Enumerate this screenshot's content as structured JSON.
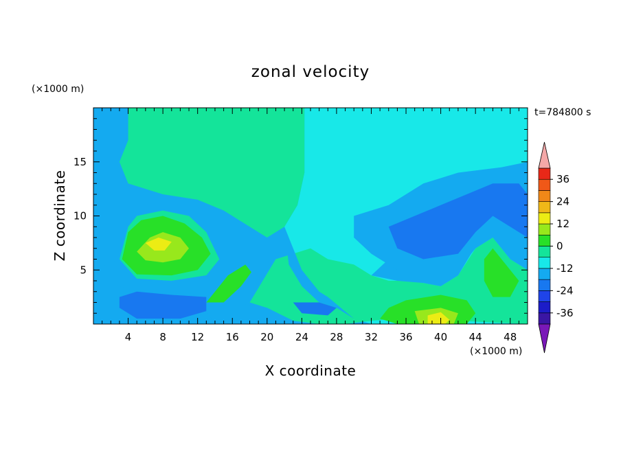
{
  "chart_data": {
    "type": "heatmap",
    "title": "zonal velocity",
    "xlabel": "X coordinate",
    "ylabel": "Z coordinate",
    "x_unit": "(×1000 m)",
    "y_unit": "(×1000 m)",
    "time_label": "t=784800 s",
    "xlim": [
      0,
      50
    ],
    "ylim": [
      0,
      20
    ],
    "x_ticks": [
      4,
      8,
      12,
      16,
      20,
      24,
      28,
      32,
      36,
      40,
      44,
      48
    ],
    "y_ticks": [
      5,
      10,
      15
    ],
    "colorbar": {
      "labels": [
        "36",
        "24",
        "12",
        "0",
        "-12",
        "-24",
        "-36"
      ],
      "label_values": [
        36,
        24,
        12,
        0,
        -12,
        -24,
        -36
      ],
      "levels": [
        -42,
        -36,
        -30,
        -24,
        -18,
        -12,
        -6,
        0,
        6,
        12,
        18,
        24,
        30,
        36,
        42
      ],
      "colors": [
        "#7a18b8",
        "#3a16a4",
        "#1c1cc8",
        "#1f44e8",
        "#1878f0",
        "#14aaf0",
        "#18e8e8",
        "#14e49a",
        "#28e028",
        "#98e81c",
        "#ecec14",
        "#f0b818",
        "#f08818",
        "#f05818",
        "#e82818",
        "#f4a8a8"
      ]
    },
    "field": {
      "background": 5,
      "regions": [
        {
          "level": 6,
          "points": [
            [
              2,
              20
            ],
            [
              50,
              20
            ],
            [
              50,
              0
            ],
            [
              32,
              0
            ],
            [
              30,
              0.5
            ],
            [
              27,
              2.5
            ],
            [
              26,
              3
            ],
            [
              24,
              5
            ],
            [
              22.5,
              6.5
            ],
            [
              22,
              9
            ],
            [
              23.5,
              11
            ],
            [
              24.3,
              14
            ],
            [
              24.3,
              20
            ]
          ]
        },
        {
          "level": 7,
          "points": [
            [
              4,
              20
            ],
            [
              24.3,
              20
            ],
            [
              24.3,
              14
            ],
            [
              23.5,
              11
            ],
            [
              22,
              9
            ],
            [
              20,
              8
            ],
            [
              18,
              9
            ],
            [
              15,
              10.5
            ],
            [
              12,
              11.5
            ],
            [
              8,
              12
            ],
            [
              4,
              13
            ],
            [
              3,
              15
            ],
            [
              4,
              17
            ]
          ]
        },
        {
          "level": 7,
          "points": [
            [
              21,
              6
            ],
            [
              25,
              7
            ],
            [
              27,
              6
            ],
            [
              30,
              5.5
            ],
            [
              32,
              4.5
            ],
            [
              34,
              4
            ],
            [
              36,
              4
            ],
            [
              38,
              3.8
            ],
            [
              40,
              3.5
            ],
            [
              42,
              4.5
            ],
            [
              44,
              7
            ],
            [
              46,
              8
            ],
            [
              48,
              6
            ],
            [
              50,
              5
            ],
            [
              50,
              0
            ],
            [
              42,
              0.3
            ],
            [
              35,
              0.5
            ],
            [
              32,
              0.3
            ],
            [
              29,
              0
            ],
            [
              26,
              0
            ],
            [
              23,
              0.3
            ],
            [
              20,
              1.5
            ],
            [
              18,
              2
            ]
          ]
        },
        {
          "level": 7,
          "points": [
            [
              3,
              6
            ],
            [
              4,
              9
            ],
            [
              5,
              10
            ],
            [
              8,
              10.5
            ],
            [
              11,
              10
            ],
            [
              13,
              8.5
            ],
            [
              14.5,
              6
            ],
            [
              13,
              4.5
            ],
            [
              9,
              4
            ],
            [
              5,
              4.2
            ]
          ]
        },
        {
          "level": 8,
          "points": [
            [
              3.3,
              6
            ],
            [
              4,
              8.5
            ],
            [
              5.5,
              9.6
            ],
            [
              8,
              10
            ],
            [
              10.5,
              9.3
            ],
            [
              12.5,
              8
            ],
            [
              13.5,
              6.5
            ],
            [
              12,
              5
            ],
            [
              9,
              4.5
            ],
            [
              5,
              4.6
            ]
          ]
        },
        {
          "level": 8,
          "points": [
            [
              36,
              2.2
            ],
            [
              40,
              2.7
            ],
            [
              43,
              2.2
            ],
            [
              44,
              1
            ],
            [
              43,
              0
            ],
            [
              35,
              0
            ],
            [
              33,
              0.5
            ],
            [
              34,
              1.5
            ]
          ]
        },
        {
          "level": 8,
          "points": [
            [
              45,
              6
            ],
            [
              46,
              7
            ],
            [
              47.5,
              5.5
            ],
            [
              49,
              4
            ],
            [
              48,
              2.5
            ],
            [
              46,
              2.5
            ],
            [
              45,
              4
            ]
          ]
        },
        {
          "level": 8,
          "points": [
            [
              13,
              2
            ],
            [
              14,
              3
            ],
            [
              15.5,
              4.5
            ],
            [
              17.5,
              5.5
            ],
            [
              18.2,
              4.8
            ],
            [
              17,
              3.5
            ],
            [
              15,
              2
            ]
          ]
        },
        {
          "level": 9,
          "points": [
            [
              5,
              6.7
            ],
            [
              6.5,
              8
            ],
            [
              8,
              8.5
            ],
            [
              10,
              8
            ],
            [
              11,
              7
            ],
            [
              10,
              6
            ],
            [
              8,
              5.7
            ],
            [
              6,
              5.9
            ]
          ]
        },
        {
          "level": 9,
          "points": [
            [
              37,
              1.2
            ],
            [
              40,
              1.5
            ],
            [
              42,
              1
            ],
            [
              41.5,
              0
            ],
            [
              37.5,
              0
            ]
          ]
        },
        {
          "level": 10,
          "points": [
            [
              6,
              7.5
            ],
            [
              7.5,
              8
            ],
            [
              9,
              7.6
            ],
            [
              8.2,
              6.8
            ],
            [
              7,
              6.8
            ]
          ]
        },
        {
          "level": 10,
          "points": [
            [
              38.5,
              0.8
            ],
            [
              40,
              1.1
            ],
            [
              41,
              0.4
            ],
            [
              40.5,
              0
            ],
            [
              38.5,
              0
            ]
          ]
        },
        {
          "level": 5,
          "points": [
            [
              3,
              4.2
            ],
            [
              9,
              4
            ],
            [
              13,
              4.5
            ],
            [
              14,
              3.5
            ],
            [
              13,
              2.5
            ],
            [
              9,
              2.7
            ],
            [
              5,
              3
            ],
            [
              3,
              3.5
            ]
          ]
        },
        {
          "level": 5,
          "points": [
            [
              16,
              2
            ],
            [
              20,
              1.5
            ],
            [
              23,
              0.3
            ],
            [
              20,
              0
            ],
            [
              14,
              0
            ],
            [
              13,
              1.2
            ]
          ]
        },
        {
          "level": 5,
          "points": [
            [
              22,
              9
            ],
            [
              24,
              5
            ],
            [
              26,
              3
            ],
            [
              27,
              2.5
            ],
            [
              30,
              0.5
            ],
            [
              28,
              1.5
            ],
            [
              26,
              2
            ],
            [
              24,
              3.5
            ],
            [
              22.5,
              5.5
            ]
          ]
        },
        {
          "level": 5,
          "points": [
            [
              32,
              4.5
            ],
            [
              35,
              4
            ],
            [
              38,
              3.8
            ],
            [
              40,
              3.5
            ],
            [
              42,
              4.5
            ],
            [
              43.5,
              6.5
            ],
            [
              40,
              6
            ],
            [
              37,
              6.3
            ],
            [
              34,
              6
            ]
          ]
        },
        {
          "level": 5,
          "points": [
            [
              30,
              10
            ],
            [
              34,
              11
            ],
            [
              38,
              13
            ],
            [
              42,
              14
            ],
            [
              47,
              14.5
            ],
            [
              50,
              15
            ],
            [
              50,
              5
            ],
            [
              48,
              6
            ],
            [
              46,
              8
            ],
            [
              44,
              7
            ],
            [
              42,
              5
            ],
            [
              38,
              4.5
            ],
            [
              35,
              5
            ],
            [
              32,
              6.5
            ],
            [
              30,
              8
            ]
          ]
        },
        {
          "level": 5,
          "points": [
            [
              0,
              13
            ],
            [
              2,
              11
            ],
            [
              4,
              9
            ],
            [
              3,
              6
            ],
            [
              0,
              5
            ]
          ]
        },
        {
          "level": 4,
          "points": [
            [
              34,
              9
            ],
            [
              37,
              10
            ],
            [
              40,
              11
            ],
            [
              43,
              12
            ],
            [
              46,
              13
            ],
            [
              49,
              13
            ],
            [
              50,
              12
            ],
            [
              50,
              8
            ],
            [
              48,
              9
            ],
            [
              46,
              10
            ],
            [
              44,
              8.5
            ],
            [
              42,
              6.5
            ],
            [
              38,
              6
            ],
            [
              35,
              7
            ]
          ]
        },
        {
          "level": 4,
          "points": [
            [
              5,
              3
            ],
            [
              9,
              2.7
            ],
            [
              13,
              2.5
            ],
            [
              13,
              1.2
            ],
            [
              10,
              0.5
            ],
            [
              5,
              0.5
            ],
            [
              3,
              1.5
            ],
            [
              3,
              2.5
            ]
          ]
        },
        {
          "level": 4,
          "points": [
            [
              23,
              2
            ],
            [
              26,
              2
            ],
            [
              28,
              1.5
            ],
            [
              27,
              0.8
            ],
            [
              24,
              1
            ]
          ]
        }
      ]
    }
  }
}
